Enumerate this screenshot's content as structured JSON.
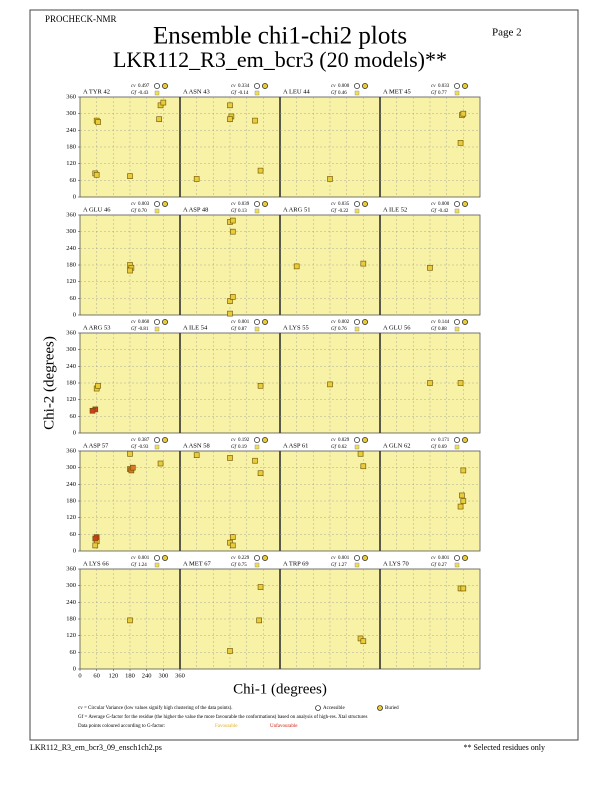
{
  "chart_data": {
    "type": "scatter",
    "program": "PROCHECK-NMR",
    "page": "Page  2",
    "title": "Ensemble chi1-chi2 plots",
    "subtitle": "LKR112_R3_em_bcr3 (20 models)**",
    "xlabel": "Chi-1 (degrees)",
    "ylabel": "Chi-2 (degrees)",
    "xlim": [
      0,
      360
    ],
    "ylim": [
      0,
      360
    ],
    "xticks": [
      0,
      60,
      120,
      180,
      240,
      300,
      360
    ],
    "yticks": [
      0,
      60,
      120,
      180,
      240,
      300,
      360
    ],
    "grid": true,
    "cv_label": "cv",
    "gf_label": "Gf",
    "columns": 4,
    "panels": [
      {
        "label": "A TYR 42",
        "cv": "0.497",
        "gf": "-0.43",
        "series": [
          {
            "color": "#e8cc3a",
            "x": [
              60,
              65,
              55,
              60,
              180,
              290,
              300,
              285
            ],
            "y": [
              275,
              270,
              85,
              80,
              75,
              330,
              340,
              280
            ]
          }
        ]
      },
      {
        "label": "A ASN 43",
        "cv": "0.334",
        "gf": "-0.14",
        "series": [
          {
            "color": "#e8cc3a",
            "x": [
              180,
              185,
              180,
              270,
              60,
              290
            ],
            "y": [
              330,
              290,
              280,
              275,
              65,
              95
            ]
          }
        ]
      },
      {
        "label": "A LEU 44",
        "cv": "0.000",
        "gf": "0.46",
        "series": [
          {
            "color": "#e8cc3a",
            "x": [
              180
            ],
            "y": [
              65
            ]
          }
        ]
      },
      {
        "label": "A MET 45",
        "cv": "0.033",
        "gf": "0.77",
        "series": [
          {
            "color": "#e8cc3a",
            "x": [
              295,
              300,
              290
            ],
            "y": [
              295,
              300,
              195
            ]
          }
        ]
      },
      {
        "label": "A GLU 46",
        "cv": "0.003",
        "gf": "0.70",
        "series": [
          {
            "color": "#e8cc3a",
            "x": [
              180,
              185,
              180
            ],
            "y": [
              180,
              170,
              160
            ]
          }
        ]
      },
      {
        "label": "A ASP 48",
        "cv": "0.039",
        "gf": "0.13",
        "series": [
          {
            "color": "#e8cc3a",
            "x": [
              180,
              190,
              190,
              180,
              190,
              180
            ],
            "y": [
              335,
              340,
              300,
              50,
              65,
              5
            ]
          }
        ]
      },
      {
        "label": "A ARG 51",
        "cv": "0.035",
        "gf": "-0.22",
        "series": [
          {
            "color": "#e8cc3a",
            "x": [
              60,
              300
            ],
            "y": [
              175,
              185
            ]
          }
        ]
      },
      {
        "label": "A ILE 52",
        "cv": "0.000",
        "gf": "-0.42",
        "series": [
          {
            "color": "#e8cc3a",
            "x": [
              180
            ],
            "y": [
              170
            ]
          }
        ]
      },
      {
        "label": "A ARG 53",
        "cv": "0.060",
        "gf": "-0.81",
        "series": [
          {
            "color": "#e8cc3a",
            "x": [
              60,
              65
            ],
            "y": [
              160,
              170
            ]
          },
          {
            "color": "#c8401c",
            "x": [
              55,
              45
            ],
            "y": [
              85,
              80
            ]
          }
        ]
      },
      {
        "label": "A ILE 54",
        "cv": "0.001",
        "gf": "0.87",
        "series": [
          {
            "color": "#e8cc3a",
            "x": [
              290
            ],
            "y": [
              170
            ]
          }
        ]
      },
      {
        "label": "A LYS 55",
        "cv": "0.002",
        "gf": "0.76",
        "series": [
          {
            "color": "#e8cc3a",
            "x": [
              180
            ],
            "y": [
              175
            ]
          }
        ]
      },
      {
        "label": "A GLU 56",
        "cv": "0.144",
        "gf": "0.88",
        "series": [
          {
            "color": "#e8cc3a",
            "x": [
              180,
              290
            ],
            "y": [
              180,
              180
            ]
          }
        ]
      },
      {
        "label": "A ASP 57",
        "cv": "0.387",
        "gf": "-0.93",
        "series": [
          {
            "color": "#e8cc3a",
            "x": [
              180,
              290,
              60,
              55
            ],
            "y": [
              350,
              315,
              35,
              20
            ]
          },
          {
            "color": "#d87a24",
            "x": [
              180,
              185,
              190
            ],
            "y": [
              295,
              290,
              300
            ]
          },
          {
            "color": "#c8401c",
            "x": [
              60,
              55
            ],
            "y": [
              50,
              45
            ]
          }
        ]
      },
      {
        "label": "A ASN 58",
        "cv": "0.192",
        "gf": "0.19",
        "series": [
          {
            "color": "#e8cc3a",
            "x": [
              60,
              180,
              270,
              290,
              190,
              180,
              190
            ],
            "y": [
              345,
              335,
              325,
              280,
              50,
              30,
              20
            ]
          }
        ]
      },
      {
        "label": "A ASP 61",
        "cv": "0.029",
        "gf": "0.62",
        "series": [
          {
            "color": "#e8cc3a",
            "x": [
              290,
              300
            ],
            "y": [
              350,
              305
            ]
          }
        ]
      },
      {
        "label": "A GLN 62",
        "cv": "0.171",
        "gf": "0.69",
        "series": [
          {
            "color": "#e8cc3a",
            "x": [
              300,
              295,
              300,
              290
            ],
            "y": [
              290,
              200,
              180,
              160
            ]
          }
        ]
      },
      {
        "label": "A LYS 66",
        "cv": "0.001",
        "gf": "1.24",
        "series": [
          {
            "color": "#e8cc3a",
            "x": [
              180
            ],
            "y": [
              175
            ]
          }
        ]
      },
      {
        "label": "A MET 67",
        "cv": "0.229",
        "gf": "0.75",
        "series": [
          {
            "color": "#e8cc3a",
            "x": [
              290,
              285,
              180
            ],
            "y": [
              295,
              175,
              65
            ]
          }
        ]
      },
      {
        "label": "A TRP 69",
        "cv": "0.001",
        "gf": "1.27",
        "series": [
          {
            "color": "#e8cc3a",
            "x": [
              290,
              300
            ],
            "y": [
              110,
              100
            ]
          }
        ]
      },
      {
        "label": "A LYS 70",
        "cv": "0.001",
        "gf": "0.27",
        "series": [
          {
            "color": "#e8cc3a",
            "x": [
              290,
              300
            ],
            "y": [
              290,
              290
            ]
          }
        ]
      }
    ],
    "legend": {
      "cv_note": "cv = Circular Variance (low values signify high clustering of the data points).",
      "accessible": "Accessible",
      "buried": "Buried",
      "gf_note": "Gf = Average G-factor for the residue (the higher the value the more favourable the conformations) based on analysis of high-res. Xtal structures",
      "colour_note": "Data points coloured according to G-factor:",
      "favourable": "Favourable",
      "unfavourable": "Unfavourable"
    },
    "footer_left": "LKR112_R3_em_bcr3_09_ensch1ch2.ps",
    "footer_right": "** Selected residues only"
  }
}
